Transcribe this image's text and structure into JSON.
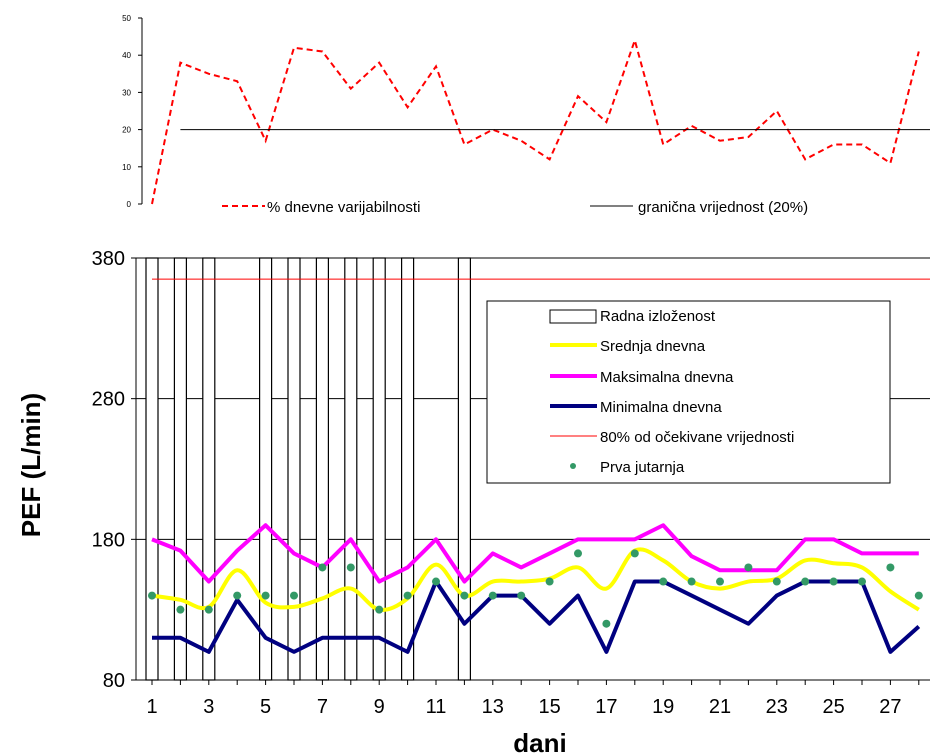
{
  "chart_data": [
    {
      "type": "line",
      "ylim": [
        0,
        50
      ],
      "yticks": [
        0,
        10,
        20,
        30,
        40,
        50
      ],
      "x_count": 28,
      "legend_position": "bottom",
      "series": [
        {
          "name": "% dnevne varijabilnosti",
          "color": "#ff0000",
          "style": "dashed",
          "values": [
            0,
            38,
            35,
            33,
            17,
            42,
            41,
            31,
            38,
            26,
            37,
            16,
            20,
            17,
            12,
            29,
            22,
            44,
            16,
            21,
            17,
            18,
            25,
            12,
            16,
            16,
            11,
            41
          ]
        },
        {
          "name": "granična vrijednost (20%)",
          "color": "#000000",
          "style": "solid",
          "constant": 20,
          "from_x": 2,
          "to_x": 28
        }
      ]
    },
    {
      "type": "line",
      "ylabel": "PEF (L/min)",
      "xlabel": "dani",
      "ylim": [
        80,
        380
      ],
      "yticks": [
        80,
        180,
        280,
        380
      ],
      "xticks": [
        1,
        3,
        5,
        7,
        9,
        11,
        13,
        15,
        17,
        19,
        21,
        23,
        25,
        27
      ],
      "legend_position": "upper right",
      "grid": "horizontal",
      "series": [
        {
          "name": "Radna izloženost",
          "kind": "exposure_bars",
          "days": [
            1,
            2,
            3,
            5,
            6,
            7,
            8,
            9,
            10,
            12
          ]
        },
        {
          "name": "Srednja dnevna",
          "color": "#ffff00",
          "values": [
            140,
            137,
            132,
            158,
            135,
            132,
            138,
            145,
            130,
            138,
            162,
            140,
            150,
            150,
            152,
            160,
            145,
            172,
            165,
            150,
            145,
            150,
            152,
            165,
            163,
            160,
            143,
            130
          ]
        },
        {
          "name": "Maksimalna dnevna",
          "color": "#ff00ff",
          "values": [
            180,
            172,
            150,
            172,
            190,
            170,
            160,
            180,
            150,
            160,
            180,
            150,
            170,
            160,
            170,
            180,
            180,
            180,
            190,
            168,
            158,
            158,
            158,
            180,
            180,
            170,
            170,
            170
          ]
        },
        {
          "name": "Minimalna dnevna",
          "color": "#000080",
          "values": [
            110,
            110,
            100,
            137,
            110,
            100,
            110,
            110,
            110,
            100,
            150,
            120,
            140,
            140,
            120,
            140,
            100,
            150,
            150,
            140,
            130,
            120,
            140,
            150,
            150,
            150,
            100,
            118
          ]
        },
        {
          "name": "80% od očekivane vrijednosti",
          "color": "#ff0000",
          "constant": 365
        },
        {
          "name": "Prva jutarnja",
          "color": "#339966",
          "kind": "points",
          "values": [
            140,
            130,
            130,
            140,
            140,
            140,
            160,
            160,
            130,
            140,
            150,
            140,
            140,
            140,
            150,
            170,
            120,
            170,
            150,
            150,
            150,
            160,
            150,
            150,
            150,
            150,
            160,
            140
          ]
        }
      ]
    }
  ]
}
